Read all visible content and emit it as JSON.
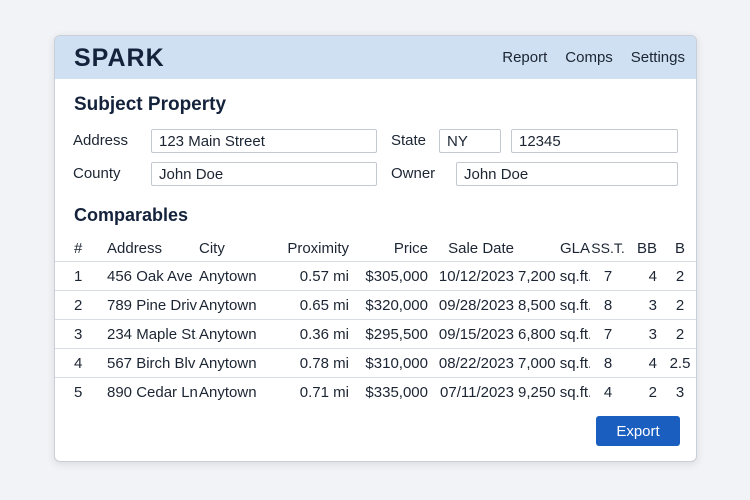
{
  "app": {
    "brand": "SPARK",
    "nav": [
      "Report",
      "Comps",
      "Settings"
    ]
  },
  "subject": {
    "title": "Subject Property",
    "address_label": "Address",
    "address_value": "123 Main Street",
    "state_label": "State",
    "state_value": "NY",
    "zip_value": "12345",
    "county_label": "County",
    "county_value": "John Doe",
    "owner_label": "Owner",
    "owner_value": "John Doe"
  },
  "comparables": {
    "title": "Comparables",
    "columns": [
      "#",
      "Address",
      "City",
      "Proximity",
      "Price",
      "Sale Date",
      "GLA",
      "SS.T.",
      "BB",
      "B"
    ],
    "rows": [
      [
        "1",
        "456 Oak Ave",
        "Anytown",
        "0.57 mi",
        "$305,000",
        "10/12/2023",
        "7,200 sq.ft.",
        "7",
        "4",
        "2"
      ],
      [
        "2",
        "789 Pine Driv",
        "Anytown",
        "0.65 mi",
        "$320,000",
        "09/28/2023",
        "8,500 sq.ft.",
        "8",
        "3",
        "2"
      ],
      [
        "3",
        "234 Maple St.",
        "Anytown",
        "0.36 mi",
        "$295,500",
        "09/15/2023",
        "6,800 sq.ft.",
        "7",
        "3",
        "2"
      ],
      [
        "4",
        "567 Birch Blv",
        "Anytown",
        "0.78 mi",
        "$310,000",
        "08/22/2023",
        "7,000 sq.ft.",
        "8",
        "4",
        "2.5"
      ],
      [
        "5",
        "890 Cedar Ln",
        "Anytown",
        "0.71 mi",
        "$335,000",
        "07/11/2023",
        "9,250 sq.ft.",
        "4",
        "2",
        "3"
      ]
    ]
  },
  "actions": {
    "export_label": "Export"
  },
  "colors": {
    "header_bg": "#cfe0f2",
    "brand_text": "#14233b",
    "button_bg": "#1a5fc0"
  }
}
